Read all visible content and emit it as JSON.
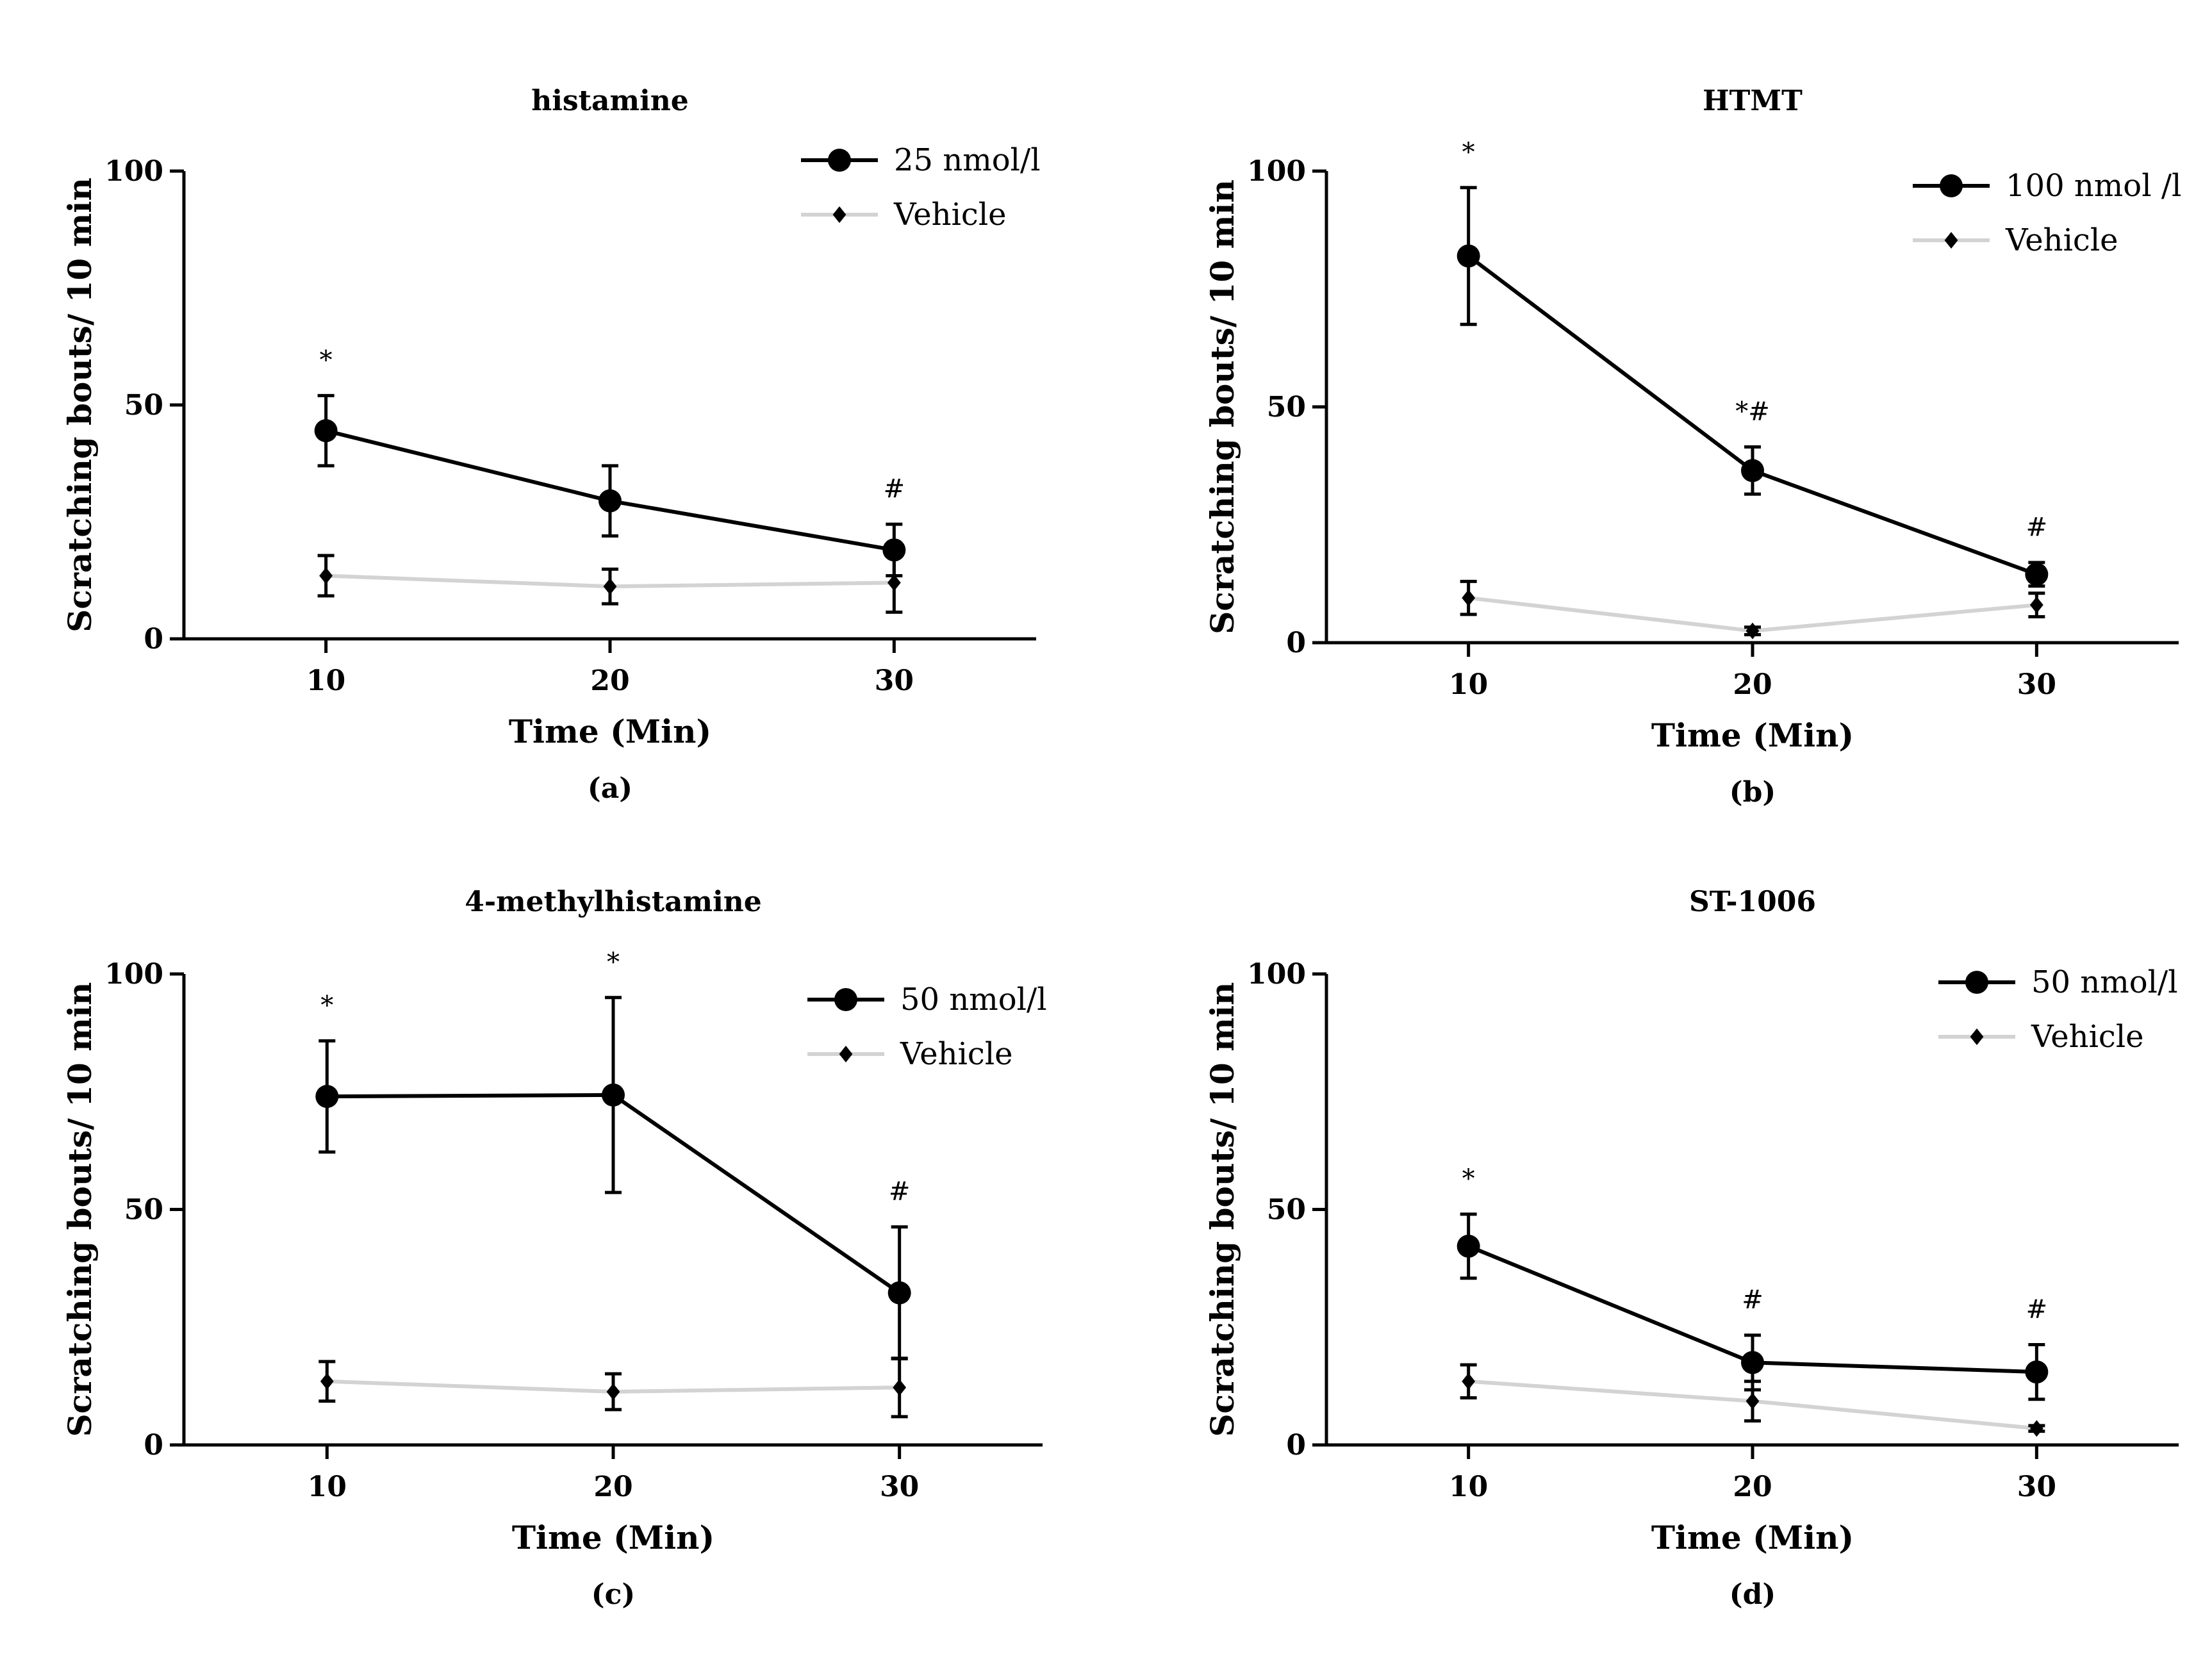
{
  "colors": {
    "treatment": "#000000",
    "vehicle": "#d3d3d3",
    "axis": "#000000"
  },
  "chart_data": [
    {
      "type": "line",
      "title": "histamine",
      "panel_label": "(a)",
      "xlabel": "Time (Min)",
      "ylabel": "Scratching bouts/ 10 min",
      "x": [
        10,
        20,
        30
      ],
      "xlim": [
        5,
        35
      ],
      "ylim": [
        0,
        100
      ],
      "yticks": [
        0,
        50,
        100
      ],
      "legend_position": "top-right",
      "series": [
        {
          "name": "25 nmol/l",
          "style": "treatment",
          "values": [
            44.5,
            29.5,
            19
          ],
          "errors": [
            7.5,
            7.5,
            5.5
          ],
          "annotations": [
            "*",
            "",
            "#"
          ]
        },
        {
          "name": "Vehicle",
          "style": "vehicle",
          "values": [
            13.5,
            11.2,
            12
          ],
          "errors": [
            4.3,
            3.7,
            6.3
          ]
        }
      ]
    },
    {
      "type": "line",
      "title": "HTMT",
      "panel_label": "(b)",
      "xlabel": "Time (Min)",
      "ylabel": "Scratching bouts/ 10 min",
      "x": [
        10,
        20,
        30
      ],
      "xlim": [
        5,
        35
      ],
      "ylim": [
        0,
        100
      ],
      "yticks": [
        0,
        50,
        100
      ],
      "legend_position": "top-right",
      "series": [
        {
          "name": "100 nmol /l",
          "style": "treatment",
          "values": [
            82,
            36.5,
            14.5
          ],
          "errors": [
            14.5,
            5,
            2.5
          ],
          "annotations": [
            "*",
            "*#",
            "#"
          ]
        },
        {
          "name": "Vehicle",
          "style": "vehicle",
          "values": [
            9.5,
            2.5,
            8
          ],
          "errors": [
            3.5,
            0.8,
            2.5
          ]
        }
      ]
    },
    {
      "type": "line",
      "title": "4-methylhistamine",
      "panel_label": "(c)",
      "xlabel": "Time (Min)",
      "ylabel": "Scratching bouts/ 10 min",
      "x": [
        10,
        20,
        30
      ],
      "xlim": [
        5,
        35
      ],
      "ylim": [
        0,
        100
      ],
      "yticks": [
        0,
        50,
        100
      ],
      "legend_position": "top-right",
      "series": [
        {
          "name": "50 nmol/l",
          "style": "treatment",
          "values": [
            74,
            74.3,
            32.3
          ],
          "errors": [
            11.8,
            20.7,
            14
          ],
          "annotations": [
            "*",
            "*",
            "#"
          ]
        },
        {
          "name": "Vehicle",
          "style": "vehicle",
          "values": [
            13.5,
            11.3,
            12.2
          ],
          "errors": [
            4.2,
            3.8,
            6.2
          ]
        }
      ]
    },
    {
      "type": "line",
      "title": "ST-1006",
      "panel_label": "(d)",
      "xlabel": "Time (Min)",
      "ylabel": "Scratching bouts/ 10 min",
      "x": [
        10,
        20,
        30
      ],
      "xlim": [
        5,
        35
      ],
      "ylim": [
        0,
        100
      ],
      "yticks": [
        0,
        50,
        100
      ],
      "legend_position": "top-right",
      "series": [
        {
          "name": "50 nmol/l",
          "style": "treatment",
          "values": [
            42.2,
            17.5,
            15.5
          ],
          "errors": [
            6.8,
            5.8,
            5.8
          ],
          "annotations": [
            "*",
            "#",
            "#"
          ]
        },
        {
          "name": "Vehicle",
          "style": "vehicle",
          "values": [
            13.5,
            9.3,
            3.5
          ],
          "errors": [
            3.5,
            4.2,
            0.6
          ]
        }
      ]
    }
  ]
}
